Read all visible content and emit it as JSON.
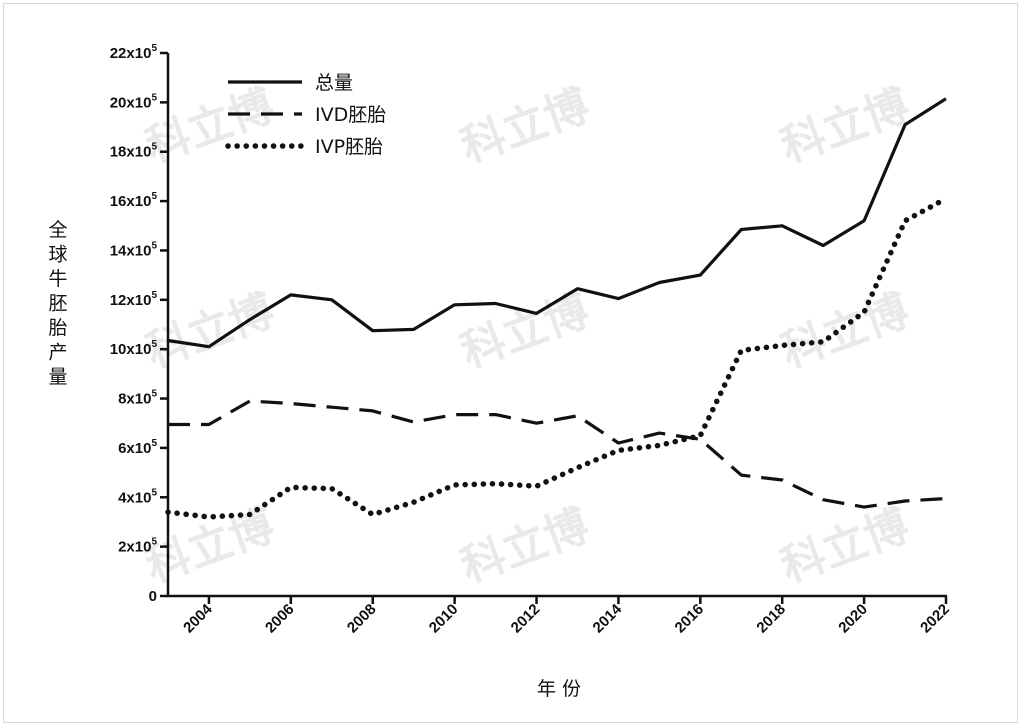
{
  "chart_data": {
    "type": "line",
    "xlabel": "年 份",
    "ylabel": "全球牛胚胎产量",
    "x": [
      2003,
      2004,
      2005,
      2006,
      2007,
      2008,
      2009,
      2010,
      2011,
      2012,
      2013,
      2014,
      2015,
      2016,
      2017,
      2018,
      2019,
      2020,
      2021,
      2022
    ],
    "xlim": [
      2003,
      2022
    ],
    "x_ticks": [
      2004,
      2006,
      2008,
      2010,
      2012,
      2014,
      2016,
      2018,
      2020,
      2022
    ],
    "ylim": [
      0,
      2200000
    ],
    "y_ticks": [
      {
        "value": 0,
        "base": "0",
        "exp": ""
      },
      {
        "value": 200000,
        "base": "2x10",
        "exp": "5"
      },
      {
        "value": 400000,
        "base": "4x10",
        "exp": "5"
      },
      {
        "value": 600000,
        "base": "6x10",
        "exp": "5"
      },
      {
        "value": 800000,
        "base": "8x10",
        "exp": "5"
      },
      {
        "value": 1000000,
        "base": "10x10",
        "exp": "5"
      },
      {
        "value": 1200000,
        "base": "12x10",
        "exp": "5"
      },
      {
        "value": 1400000,
        "base": "14x10",
        "exp": "5"
      },
      {
        "value": 1600000,
        "base": "16x10",
        "exp": "5"
      },
      {
        "value": 1800000,
        "base": "18x10",
        "exp": "5"
      },
      {
        "value": 2000000,
        "base": "20x10",
        "exp": "5"
      },
      {
        "value": 2200000,
        "base": "22x10",
        "exp": "5"
      }
    ],
    "grid": false,
    "legend_position": "top-left",
    "series": [
      {
        "name": "总量",
        "style": "solid",
        "color": "#111111",
        "values": [
          1035000,
          1010000,
          1120000,
          1220000,
          1200000,
          1075000,
          1080000,
          1180000,
          1185000,
          1145000,
          1245000,
          1205000,
          1270000,
          1300000,
          1485000,
          1500000,
          1420000,
          1520000,
          1910000,
          2015000
        ]
      },
      {
        "name": "IVD胚胎",
        "style": "dashed",
        "color": "#111111",
        "values": [
          695000,
          695000,
          790000,
          780000,
          765000,
          750000,
          705000,
          735000,
          735000,
          700000,
          730000,
          620000,
          660000,
          635000,
          490000,
          470000,
          390000,
          360000,
          385000,
          395000
        ]
      },
      {
        "name": "IVP胚胎",
        "style": "dotted",
        "color": "#111111",
        "values": [
          340000,
          320000,
          330000,
          440000,
          435000,
          330000,
          380000,
          450000,
          455000,
          445000,
          520000,
          590000,
          610000,
          650000,
          995000,
          1015000,
          1030000,
          1150000,
          1520000,
          1610000
        ]
      }
    ]
  },
  "watermark": {
    "text": "科立博",
    "color": "#e9e9e9"
  }
}
